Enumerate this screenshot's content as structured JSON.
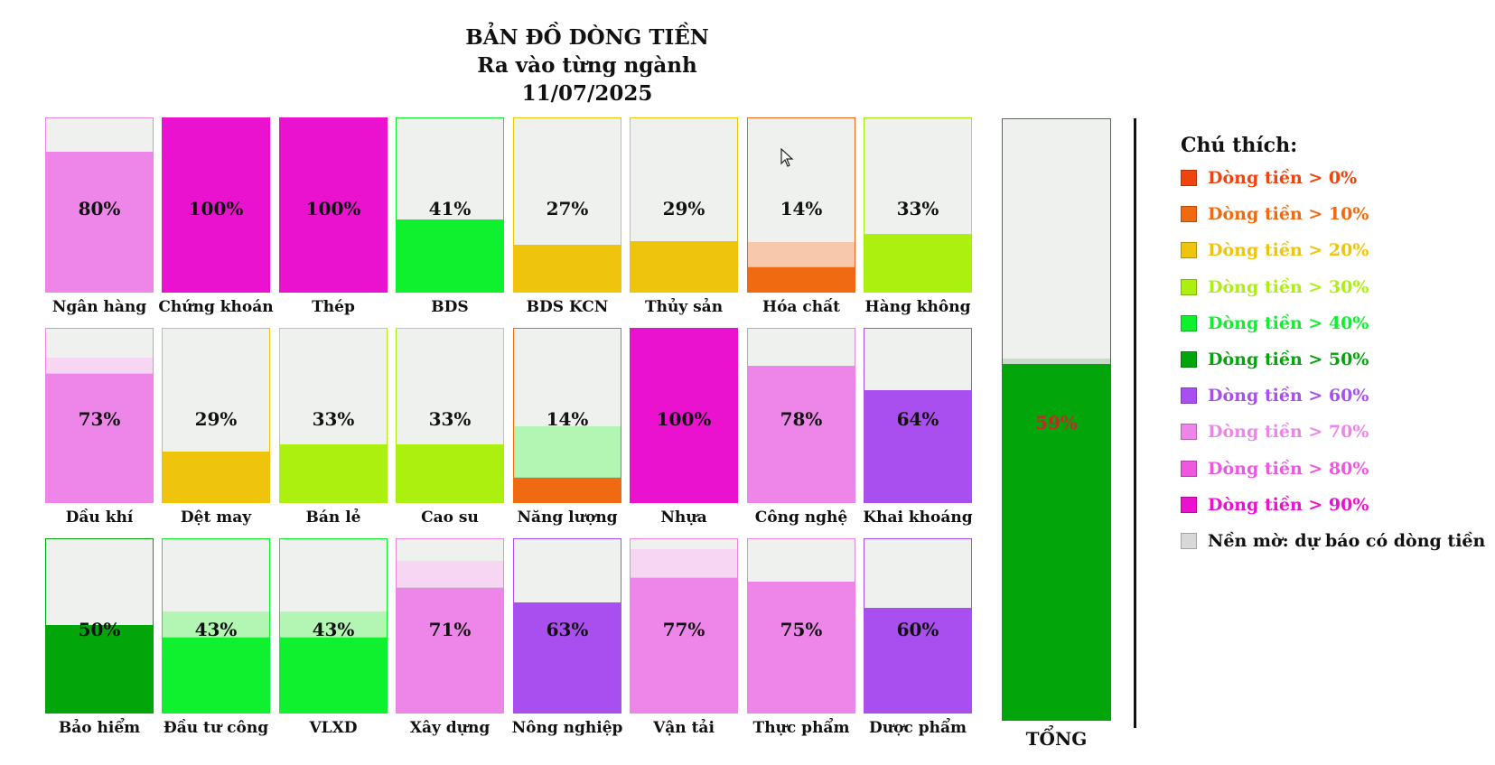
{
  "title_lines": [
    "BẢN ĐỒ DÒNG TIỀN",
    "Ra vào từng ngành",
    "11/07/2025"
  ],
  "chart_data": {
    "type": "bar",
    "categories": [
      "Ngân hàng",
      "Chứng khoán",
      "Thép",
      "BDS",
      "BDS KCN",
      "Thủy sản",
      "Hóa chất",
      "Hàng không",
      "Dầu khí",
      "Dệt may",
      "Bán lẻ",
      "Cao su",
      "Năng lượng",
      "Nhựa",
      "Công nghệ",
      "Khai khoáng",
      "Bảo hiểm",
      "Đầu tư công",
      "VLXD",
      "Xây dựng",
      "Nông nghiệp",
      "Vận tải",
      "Thực phẩm",
      "Dược phẩm"
    ],
    "values": [
      80,
      100,
      100,
      41,
      27,
      29,
      14,
      33,
      73,
      29,
      33,
      33,
      14,
      100,
      78,
      64,
      50,
      43,
      43,
      71,
      63,
      77,
      75,
      60
    ],
    "forecast": [
      80,
      100,
      100,
      41,
      27,
      29,
      28,
      33,
      82,
      29,
      33,
      33,
      43,
      100,
      78,
      64,
      50,
      57,
      57,
      86,
      63,
      93,
      75,
      60
    ],
    "total": {
      "label": "TỔNG",
      "value": 59
    },
    "ylim": [
      0,
      100
    ]
  },
  "tiles": [
    {
      "name": "Ngân hàng",
      "pct_text": "80%"
    },
    {
      "name": "Chứng khoán",
      "pct_text": "100%"
    },
    {
      "name": "Thép",
      "pct_text": "100%"
    },
    {
      "name": "BDS",
      "pct_text": "41%"
    },
    {
      "name": "BDS KCN",
      "pct_text": "27%"
    },
    {
      "name": "Thủy sản",
      "pct_text": "29%"
    },
    {
      "name": "Hóa chất",
      "pct_text": "14%"
    },
    {
      "name": "Hàng không",
      "pct_text": "33%"
    },
    {
      "name": "Dầu khí",
      "pct_text": "73%"
    },
    {
      "name": "Dệt may",
      "pct_text": "29%"
    },
    {
      "name": "Bán lẻ",
      "pct_text": "33%"
    },
    {
      "name": "Cao su",
      "pct_text": "33%"
    },
    {
      "name": "Năng lượng",
      "pct_text": "14%"
    },
    {
      "name": "Nhựa",
      "pct_text": "100%"
    },
    {
      "name": "Công nghệ",
      "pct_text": "78%"
    },
    {
      "name": "Khai khoáng",
      "pct_text": "64%"
    },
    {
      "name": "Bảo hiểm",
      "pct_text": "50%"
    },
    {
      "name": "Đầu tư công",
      "pct_text": "43%"
    },
    {
      "name": "VLXD",
      "pct_text": "43%"
    },
    {
      "name": "Xây dựng",
      "pct_text": "71%"
    },
    {
      "name": "Nông nghiệp",
      "pct_text": "63%"
    },
    {
      "name": "Vận tải",
      "pct_text": "77%"
    },
    {
      "name": "Thực phẩm",
      "pct_text": "75%"
    },
    {
      "name": "Dược phẩm",
      "pct_text": "60%"
    }
  ],
  "total": {
    "label": "TỔNG",
    "pct_text": "59%"
  },
  "legend": {
    "title": "Chú thích:",
    "items": [
      {
        "label": "Dòng tiền > 0%",
        "color": "#f0440e"
      },
      {
        "label": "Dòng tiền > 10%",
        "color": "#ef6a10"
      },
      {
        "label": "Dòng tiền > 20%",
        "color": "#eec40c"
      },
      {
        "label": "Dòng tiền > 30%",
        "color": "#acf00f"
      },
      {
        "label": "Dòng tiền > 40%",
        "color": "#0ff02e"
      },
      {
        "label": "Dòng tiền > 50%",
        "color": "#03a60a"
      },
      {
        "label": "Dòng tiền > 60%",
        "color": "#a94fef"
      },
      {
        "label": "Dòng tiền > 70%",
        "color": "#ee86e9"
      },
      {
        "label": "Dòng tiền > 80%",
        "color": "#ee57df"
      },
      {
        "label": "Dòng tiền > 90%",
        "color": "#ea11cf"
      },
      {
        "label": "Nền mờ: dự báo có dòng tiền",
        "color": "#d8d8d8"
      }
    ]
  },
  "colors": {
    "tile_bg": "#eff1ee",
    "fill_10": "#ef6a10",
    "fill_20": "#eec40c",
    "fill_30": "#acf00f",
    "fill_40": "#0ff02e",
    "fill_50": "#03a60a",
    "fill_60": "#a94fef",
    "fill_70": "#ee86e9",
    "fill_90": "#ea11cf",
    "ghost_10": "#f8c8ac",
    "ghost_40": "#b3f5b3",
    "ghost_70": "#f7d6f3",
    "total_gap": "#c6dcc6",
    "total_text": "#c62828"
  },
  "icons": {
    "cursor": "mouse-pointer-icon"
  }
}
